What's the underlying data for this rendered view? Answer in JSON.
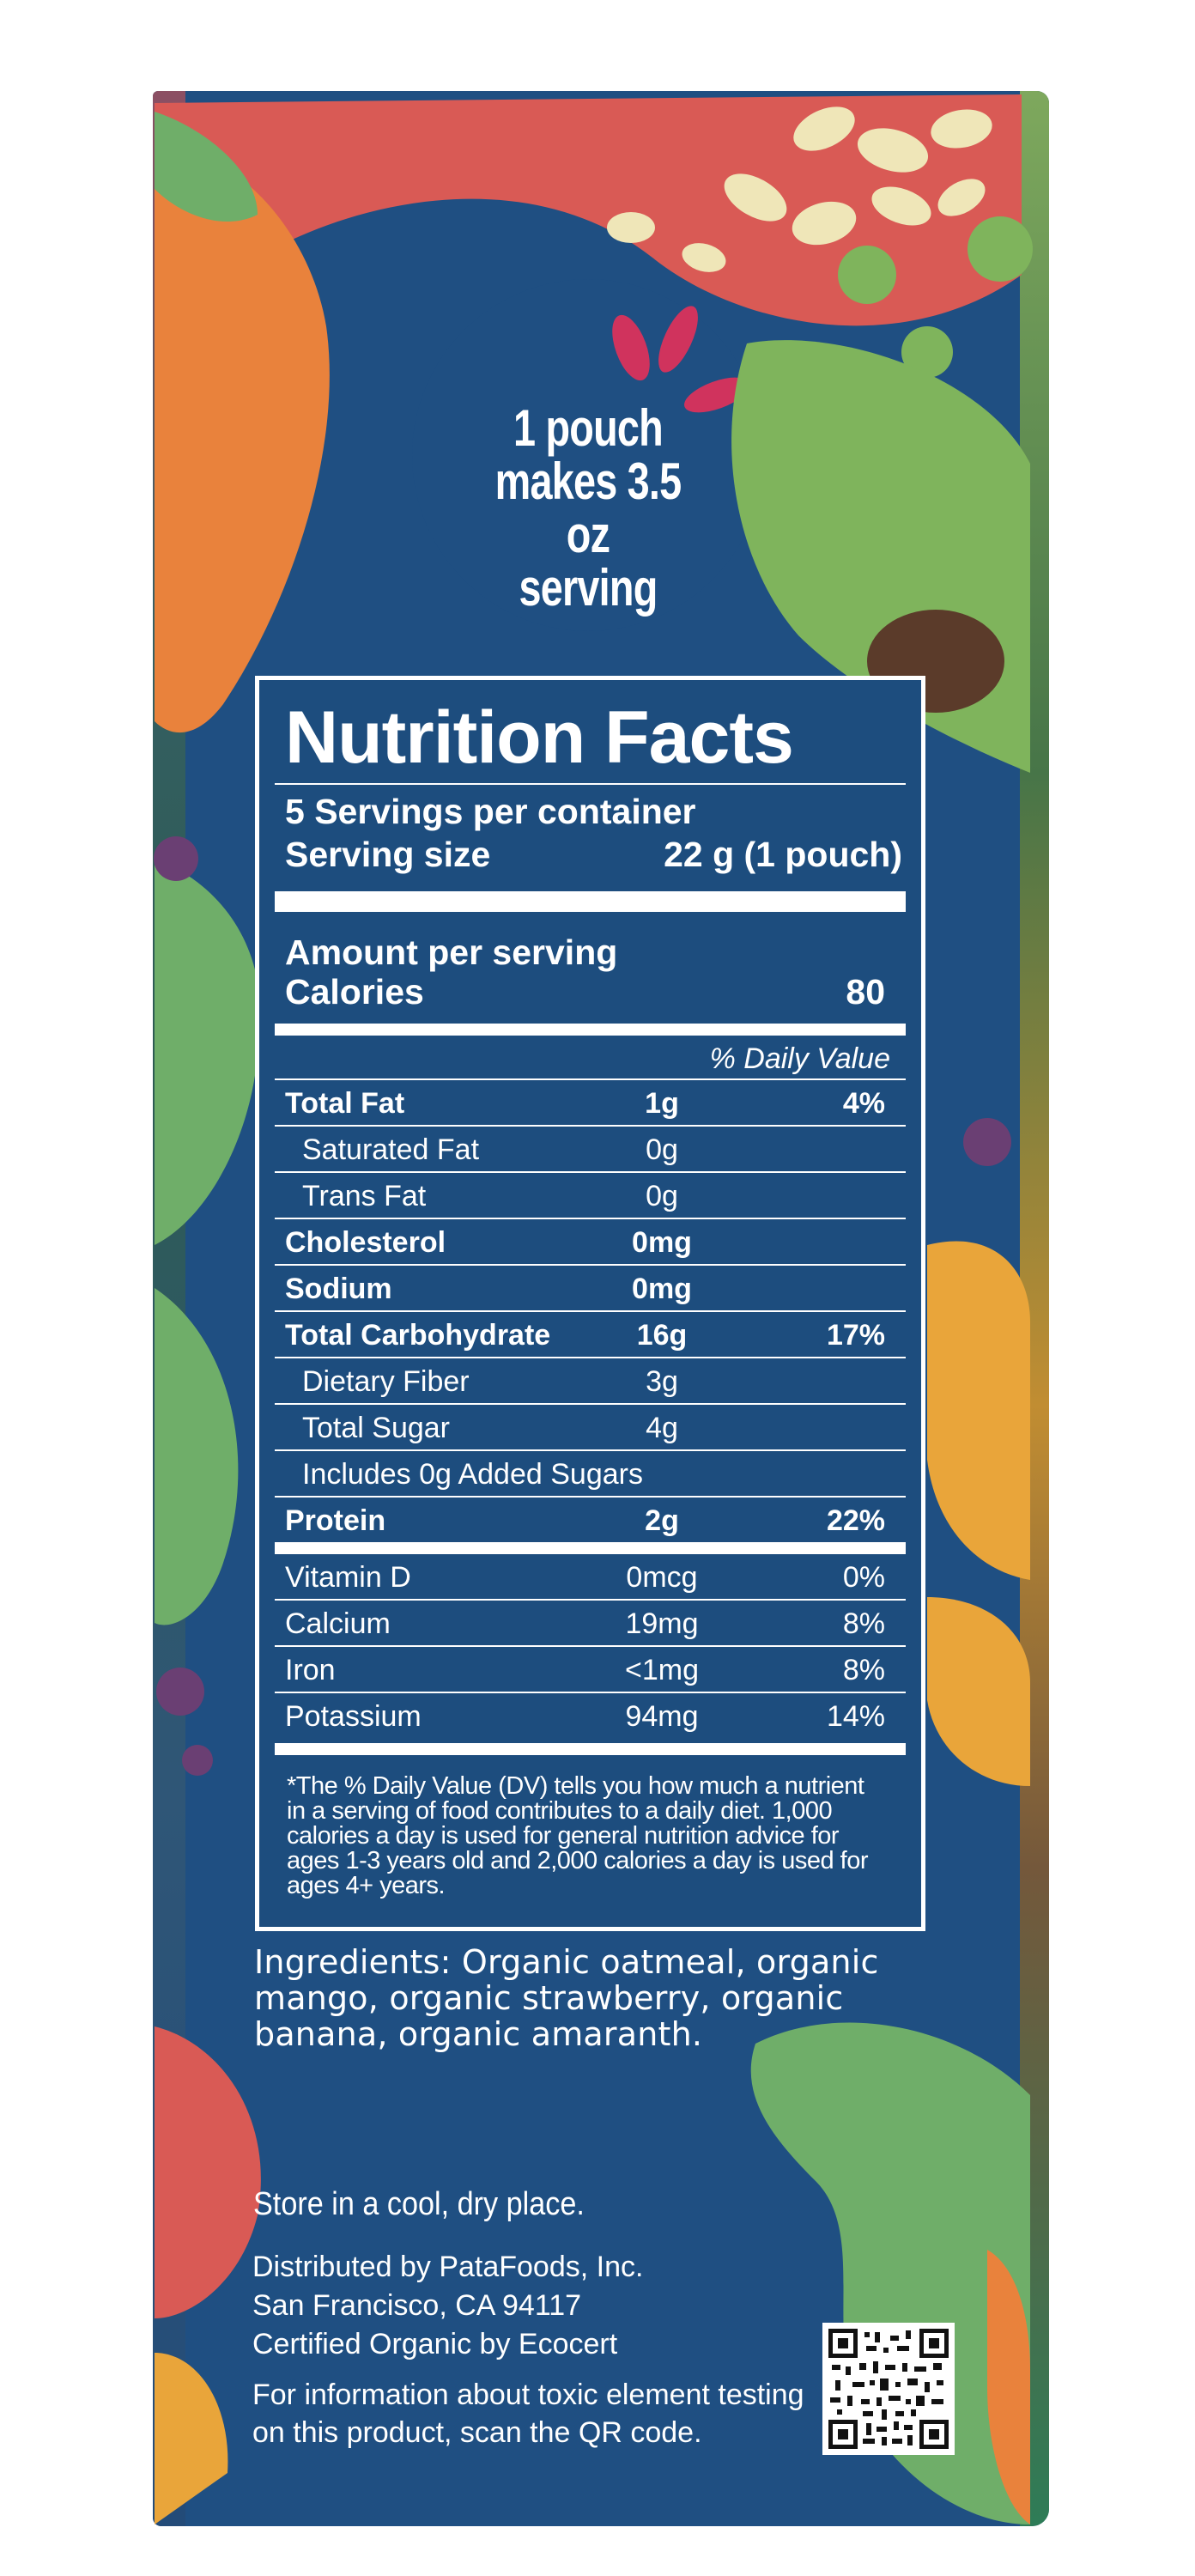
{
  "package": {
    "serving_bubble_lines": [
      "1 pouch",
      "makes 3.5 oz",
      "serving"
    ]
  },
  "nutrition": {
    "title": "Nutrition Facts",
    "servings_per_container": "5 Servings per container",
    "serving_size_label": "Serving size",
    "serving_size_value": "22 g (1 pouch)",
    "amount_per_serving": "Amount per serving",
    "calories_label": "Calories",
    "calories_value": "80",
    "dv_header": "% Daily Value",
    "nutrients": [
      {
        "name": "Total Fat",
        "amount": "1g",
        "dv": "4%"
      },
      {
        "name": "Saturated Fat",
        "amount": "0g",
        "dv": ""
      },
      {
        "name": "Trans Fat",
        "amount": "0g",
        "dv": ""
      },
      {
        "name": "Cholesterol",
        "amount": "0mg",
        "dv": ""
      },
      {
        "name": "Sodium",
        "amount": "0mg",
        "dv": ""
      },
      {
        "name": "Total Carbohydrate",
        "amount": "16g",
        "dv": "17%"
      },
      {
        "name": "Dietary Fiber",
        "amount": "3g",
        "dv": ""
      },
      {
        "name": "Total Sugar",
        "amount": "4g",
        "dv": ""
      },
      {
        "name": "Includes 0g Added Sugars",
        "amount": "",
        "dv": ""
      },
      {
        "name": "Protein",
        "amount": "2g",
        "dv": "22%"
      }
    ],
    "vitamins": [
      {
        "name": "Vitamin D",
        "amount": "0mcg",
        "dv": "0%"
      },
      {
        "name": "Calcium",
        "amount": "19mg",
        "dv": "8%"
      },
      {
        "name": "Iron",
        "amount": "<1mg",
        "dv": "8%"
      },
      {
        "name": "Potassium",
        "amount": "94mg",
        "dv": "14%"
      }
    ],
    "footnote": "*The % Daily Value (DV) tells you how much a nutrient in a serving of food contributes to a daily diet. 1,000 calories a day is used for general nutrition advice for ages 1-3 years old and 2,000 calories a day is used for ages 4+ years."
  },
  "ingredients_text": "Ingredients: Organic oatmeal, organic mango, organic strawberry, organic banana, organic amaranth.",
  "storage": "Store in a cool, dry place.",
  "distributor_lines": [
    "Distributed by PataFoods, Inc.",
    "San Francisco, CA 94117",
    "Certified Organic by Ecocert"
  ],
  "qr_note_lines": [
    "For information about toxic element testing",
    "on this product, scan the QR code."
  ],
  "colors": {
    "box_blue": "#1f4f82",
    "panel_blue": "#1d4d7e",
    "leaf_green": "#6fae69",
    "carrot_orange": "#e9823c",
    "strawberry_red": "#d95a55",
    "oat_cream": "#efe6b8",
    "mango_yellow": "#e9a53a",
    "berry_purple": "#6a3f73"
  }
}
